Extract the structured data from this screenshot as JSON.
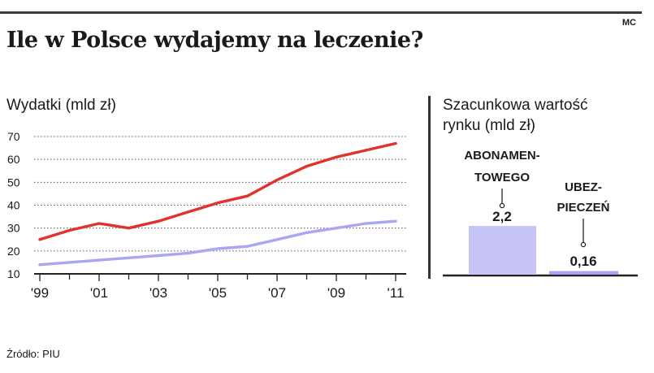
{
  "header": {
    "title": "Ile w Polsce wydajemy na leczenie?",
    "credit": "MC"
  },
  "footer": {
    "source": "Źródło:  PIU"
  },
  "colors": {
    "line_red": "#e0332b",
    "line_blue": "#a9a7f2",
    "bar": "#c7c5f8",
    "bar_dark": "#a5a2ef"
  },
  "chart_data": [
    {
      "type": "line",
      "title": "Wydatki (mld zł)",
      "x": [
        1999,
        2000,
        2001,
        2002,
        2003,
        2004,
        2005,
        2006,
        2007,
        2008,
        2009,
        2010,
        2011
      ],
      "xticks": [
        "'99",
        "'01",
        "'03",
        "'05",
        "'07",
        "'09",
        "'11"
      ],
      "xtick_values": [
        1999,
        2001,
        2003,
        2005,
        2007,
        2009,
        2011
      ],
      "yticks": [
        10,
        20,
        30,
        40,
        50,
        60,
        70
      ],
      "ylim": [
        10,
        70
      ],
      "grid": true,
      "series": [
        {
          "values": [
            25,
            29,
            32,
            30,
            33,
            37,
            41,
            44,
            51,
            57,
            61,
            64,
            67
          ],
          "color": "#e0332b"
        },
        {
          "values": [
            14,
            15,
            16,
            17,
            18,
            19,
            21,
            22,
            25,
            28,
            30,
            32,
            33
          ],
          "color": "#a9a7f2"
        }
      ]
    },
    {
      "type": "bar",
      "title": "Szacunkowa wartość rynku (mld zł)",
      "title_lines": [
        "Szacunkowa wartość",
        "rynku (mld zł)"
      ],
      "categories": [
        "ABONAMENTOWEGO",
        "UBEZPIECZEŃ"
      ],
      "category_lines": [
        [
          "ABONAMEN-",
          "TOWEGO"
        ],
        [
          "UBEZ-",
          "PIECZEŃ"
        ]
      ],
      "values": [
        2.2,
        0.16
      ],
      "value_labels": [
        "2,2",
        "0,16"
      ],
      "ylim": [
        0,
        2.2
      ]
    }
  ]
}
